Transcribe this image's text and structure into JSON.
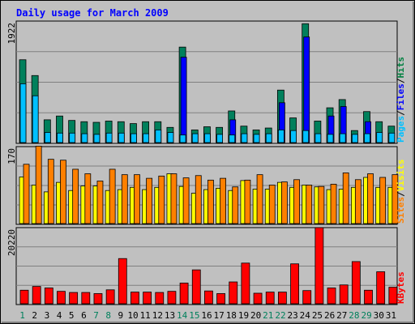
{
  "chart_data": {
    "type": "bar",
    "title": "Daily usage for March 2009",
    "days": [
      "1",
      "2",
      "3",
      "4",
      "5",
      "6",
      "7",
      "8",
      "9",
      "10",
      "11",
      "12",
      "13",
      "14",
      "15",
      "16",
      "17",
      "18",
      "19",
      "20",
      "21",
      "22",
      "23",
      "24",
      "25",
      "26",
      "27",
      "28",
      "29",
      "30",
      "31"
    ],
    "weekend_days": [
      "1",
      "7",
      "8",
      "14",
      "15",
      "21",
      "22",
      "28",
      "29"
    ],
    "panels": [
      {
        "name": "hits-files-pages",
        "ymax_label": "1922",
        "ymax": 1922,
        "axis_labels": [
          {
            "text": "Hits",
            "color": "#008040"
          },
          {
            "text": "/",
            "color": "#000000"
          },
          {
            "text": "Files",
            "color": "#0000ff"
          },
          {
            "text": "/",
            "color": "#000000"
          },
          {
            "text": "Pages",
            "color": "#00c0ff"
          }
        ],
        "series": [
          {
            "name": "Hits",
            "color": "#00805c",
            "values": [
              1310,
              1060,
              360,
              420,
              350,
              330,
              320,
              340,
              330,
              300,
              330,
              330,
              240,
              1510,
              200,
              250,
              240,
              500,
              260,
              200,
              230,
              830,
              390,
              1880,
              340,
              550,
              680,
              190,
              490,
              330,
              260
            ]
          },
          {
            "name": "Files",
            "color": "#0000ff",
            "values": [
              0,
              0,
              0,
              0,
              0,
              0,
              0,
              0,
              0,
              0,
              0,
              0,
              0,
              1350,
              0,
              0,
              0,
              360,
              0,
              0,
              0,
              630,
              0,
              1670,
              0,
              420,
              570,
              0,
              330,
              0,
              0
            ]
          },
          {
            "name": "Pages",
            "color": "#00c0ff",
            "values": [
              930,
              740,
              160,
              150,
              150,
              140,
              130,
              150,
              150,
              140,
              140,
              200,
              160,
              120,
              140,
              140,
              130,
              120,
              140,
              130,
              140,
              200,
              190,
              190,
              140,
              130,
              140,
              130,
              140,
              160,
              150
            ]
          }
        ]
      },
      {
        "name": "visits-sites",
        "ymax_label": "170",
        "ymax": 170,
        "axis_labels": [
          {
            "text": "Visits",
            "color": "#ffff00"
          },
          {
            "text": "/",
            "color": "#000000"
          },
          {
            "text": "Sites",
            "color": "#ff8000"
          }
        ],
        "series": [
          {
            "name": "Visits",
            "color": "#ffff00",
            "values": [
              103,
              85,
              70,
              91,
              73,
              83,
              83,
              73,
              75,
              80,
              75,
              80,
              110,
              82,
              67,
              75,
              78,
              73,
              95,
              76,
              76,
              91,
              80,
              85,
              81,
              75,
              76,
              80,
              102,
              80,
              80
            ]
          },
          {
            "name": "Sites",
            "color": "#ff8000",
            "values": [
              131,
              171,
              142,
              140,
              120,
              110,
              94,
              120,
              108,
              108,
              100,
              105,
              110,
              101,
              106,
              96,
              100,
              81,
              96,
              108,
              85,
              92,
              97,
              85,
              82,
              87,
              112,
              97,
              110,
              102,
              108
            ]
          }
        ]
      },
      {
        "name": "kbytes",
        "ymax_label": "20220",
        "ymax": 20220,
        "axis_labels": [
          {
            "text": "KBytes",
            "color": "#ff0000"
          }
        ],
        "series": [
          {
            "name": "KBytes",
            "color": "#ff0000",
            "values": [
              3600,
              4600,
              4200,
              3300,
              3000,
              3000,
              2700,
              3700,
              12000,
              3100,
              3100,
              3000,
              3300,
              5500,
              9000,
              3400,
              2700,
              5800,
              10800,
              2800,
              3100,
              3100,
              10600,
              3500,
              20220,
              4200,
              5000,
              11200,
              3600,
              8500,
              4400
            ]
          }
        ]
      }
    ]
  }
}
